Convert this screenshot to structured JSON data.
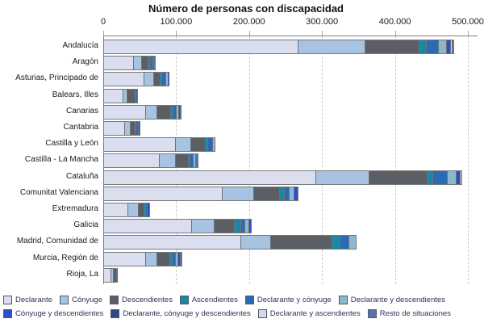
{
  "chart_data": {
    "type": "bar",
    "orientation": "horizontal",
    "stacked": true,
    "title": "Número de personas con discapacidad",
    "xlabel": "",
    "ylabel": "",
    "xlim": [
      0,
      500000
    ],
    "x_tick_values": [
      0,
      100000,
      200000,
      300000,
      400000,
      500000
    ],
    "x_tick_labels": [
      "0",
      "100.000",
      "200.000",
      "300.000",
      "400.000",
      "500.000"
    ],
    "grid": "vertical-dashed",
    "legend_position": "bottom",
    "categories": [
      "Andalucía",
      "Aragón",
      "Asturias, Principado de",
      "Balears, Illes",
      "Canarias",
      "Cantabria",
      "Castilla y León",
      "Castilla - La Mancha",
      "Cataluña",
      "Comunitat Valenciana",
      "Extremadura",
      "Galicia",
      "Madrid, Comunidad de",
      "Murcia, Región de",
      "Rioja, La"
    ],
    "series": [
      {
        "name": "Declarante",
        "color": "#dbdeee",
        "values": [
          271000,
          44500,
          58500,
          28000,
          60500,
          31000,
          100500,
          79500,
          295000,
          165500,
          35500,
          124000,
          190000,
          60500,
          11500
        ]
      },
      {
        "name": "Cónyuge",
        "color": "#a8c3e1",
        "values": [
          92000,
          10000,
          13500,
          5500,
          15500,
          7500,
          21500,
          21500,
          72000,
          43000,
          14000,
          31000,
          41000,
          15500,
          1500
        ]
      },
      {
        "name": "Descendientes",
        "color": "#5b5f64",
        "values": [
          74000,
          9500,
          7500,
          10500,
          20000,
          6000,
          19500,
          17500,
          80000,
          36000,
          8000,
          27000,
          84000,
          18500,
          4000
        ]
      },
      {
        "name": "Ascendientes",
        "color": "#1987a7",
        "values": [
          9500,
          1500,
          2000,
          500,
          2000,
          1000,
          2500,
          2000,
          7500,
          5000,
          500,
          7500,
          10000,
          2000,
          0
        ]
      },
      {
        "name": "Declarante y cónyuge",
        "color": "#2a6cb3",
        "values": [
          15500,
          2500,
          5000,
          1000,
          4000,
          2000,
          5000,
          3500,
          18500,
          6000,
          2000,
          5000,
          11000,
          3500,
          1000
        ]
      },
      {
        "name": "Declarante y descendientes",
        "color": "#8cb8cf",
        "values": [
          10000,
          0,
          1500,
          0,
          1500,
          0,
          2500,
          1500,
          11000,
          5500,
          0,
          4500,
          9000,
          3000,
          0
        ]
      },
      {
        "name": "Cónyuge y descendientes",
        "color": "#2b50c8",
        "values": [
          4500,
          1000,
          1000,
          0,
          1000,
          1000,
          0,
          0,
          5000,
          4500,
          1500,
          2000,
          0,
          1500,
          0
        ]
      },
      {
        "name": "Declarante, cónyuge y descendientes",
        "color": "#32487e",
        "values": [
          0,
          0,
          0,
          0,
          0,
          0,
          0,
          0,
          0,
          0,
          0,
          0,
          0,
          0,
          0
        ]
      },
      {
        "name": "Declarante y ascendientes",
        "color": "#d3d8ec",
        "values": [
          1500,
          0,
          0,
          0,
          0,
          0,
          0,
          0,
          1000,
          0,
          0,
          0,
          0,
          0,
          0
        ]
      },
      {
        "name": "Resto de situaciones",
        "color": "#5674a9",
        "values": [
          1000,
          1000,
          0,
          0,
          1000,
          0,
          0,
          3000,
          0,
          0,
          0,
          0,
          0,
          1500,
          0
        ]
      }
    ],
    "legend_rows": [
      [
        0,
        1,
        2,
        3,
        4,
        5
      ],
      [
        6,
        7,
        8,
        9
      ]
    ]
  }
}
